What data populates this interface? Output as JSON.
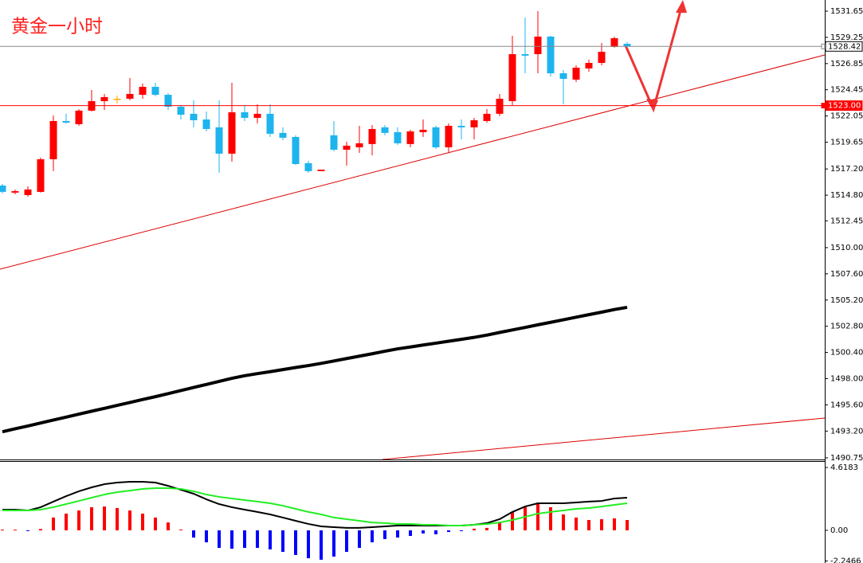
{
  "chart_data": [
    {
      "type": "candlestick",
      "title": "黄金一小时",
      "open": [
        1515.68,
        1515.03,
        1514.81,
        1515.1,
        1518.09,
        1521.59,
        1521.3,
        1522.54,
        1523.41,
        1523.63,
        1523.63,
        1523.99,
        1524.72,
        1523.99,
        1522.9,
        1522.25,
        1521.73,
        1521.01,
        1518.6,
        1522.39,
        1521.88,
        1522.25,
        1520.5,
        1520.13,
        1517.73,
        1517.0,
        1520.28,
        1518.96,
        1519.18,
        1519.48,
        1521.01,
        1520.57,
        1519.48,
        1520.57,
        1521.01,
        1519.18,
        1521.15,
        1521.01,
        1521.59,
        1522.25,
        1523.41,
        1527.71,
        1527.71,
        1529.32,
        1525.96,
        1525.38,
        1526.4,
        1526.91,
        1528.37,
        1528.66
      ],
      "high": [
        1515.83,
        1515.32,
        1515.61,
        1518.24,
        1522.1,
        1522.25,
        1522.68,
        1524.43,
        1524.07,
        1523.92,
        1525.53,
        1525.02,
        1525.09,
        1524.14,
        1523.05,
        1523.48,
        1522.46,
        1523.48,
        1525.09,
        1523.05,
        1523.12,
        1523.12,
        1521.01,
        1520.28,
        1517.94,
        1517.14,
        1521.59,
        1519.69,
        1521.15,
        1521.22,
        1521.22,
        1521.01,
        1520.79,
        1521.73,
        1521.15,
        1521.37,
        1521.73,
        1521.88,
        1522.68,
        1524.07,
        1529.39,
        1531.07,
        1531.65,
        1529.39,
        1526.25,
        1526.69,
        1527.2,
        1528.73,
        1529.32,
        1528.81
      ],
      "low": [
        1514.96,
        1514.88,
        1514.66,
        1515.03,
        1517.0,
        1521.37,
        1521.15,
        1522.46,
        1522.61,
        1523.19,
        1523.48,
        1523.63,
        1523.85,
        1522.61,
        1521.73,
        1521.01,
        1520.64,
        1516.85,
        1517.87,
        1521.59,
        1521.37,
        1520.13,
        1519.84,
        1517.58,
        1516.85,
        1517.0,
        1518.82,
        1517.51,
        1518.67,
        1518.45,
        1520.28,
        1519.4,
        1519.18,
        1520.13,
        1519.04,
        1518.67,
        1519.91,
        1519.91,
        1521.44,
        1522.03,
        1523.05,
        1525.96,
        1525.96,
        1525.67,
        1523.12,
        1525.16,
        1526.11,
        1526.69,
        1528.3,
        1528.3
      ],
      "close": [
        1515.1,
        1515.17,
        1515.32,
        1518.09,
        1521.59,
        1521.44,
        1522.54,
        1523.41,
        1523.78,
        1523.63,
        1524.07,
        1524.72,
        1523.99,
        1522.9,
        1522.17,
        1521.66,
        1520.86,
        1518.6,
        1522.39,
        1521.88,
        1522.25,
        1520.42,
        1520.06,
        1517.65,
        1517.0,
        1517.14,
        1518.96,
        1519.33,
        1519.55,
        1520.86,
        1520.5,
        1519.55,
        1520.64,
        1520.79,
        1519.18,
        1521.15,
        1521.01,
        1521.66,
        1522.25,
        1523.63,
        1527.71,
        1527.57,
        1529.32,
        1525.96,
        1525.45,
        1526.47,
        1526.91,
        1527.93,
        1529.17,
        1528.44
      ],
      "colors": {
        "up": "#ff0000",
        "down": "#1eb4ee",
        "doji": "#ffa500"
      },
      "lines": [
        {
          "color": "#000000",
          "values": [
            1493.14,
            1493.41,
            1493.67,
            1493.94,
            1494.21,
            1494.48,
            1494.75,
            1495.02,
            1495.28,
            1495.55,
            1495.82,
            1496.09,
            1496.35,
            1496.63,
            1496.91,
            1497.19,
            1497.47,
            1497.75,
            1498.03,
            1498.27,
            1498.46,
            1498.64,
            1498.83,
            1499.02,
            1499.2,
            1499.4,
            1499.62,
            1499.84,
            1500.06,
            1500.28,
            1500.51,
            1500.73,
            1500.9,
            1501.08,
            1501.25,
            1501.43,
            1501.6,
            1501.78,
            1501.99,
            1502.23,
            1502.46,
            1502.69,
            1502.93,
            1503.16,
            1503.39,
            1503.63,
            1503.86,
            1504.09,
            1504.33,
            1504.53
          ]
        }
      ],
      "price_labels": [
        {
          "value": 1528.42,
          "label": "1528.42",
          "color": "#888888",
          "fill": "#ffffff",
          "text_color": "#000000"
        },
        {
          "value": 1523,
          "label": "1523.00",
          "color": "#ff0000",
          "fill": "#ff0000",
          "text_color": "#ffffff"
        }
      ],
      "ylim": [
        1490.6,
        1532.67
      ],
      "yticks": [
        1531.65,
        1529.25,
        1526.85,
        1524.45,
        1522.05,
        1519.65,
        {
          "value": 1517.2,
          "label": "1517.20"
        },
        {
          "value": 1514.8,
          "label": "1514.80"
        },
        1512.45,
        {
          "value": 1510,
          "label": "1510.00"
        },
        {
          "value": 1507.6,
          "label": "1507.60"
        },
        {
          "value": 1505.2,
          "label": "1505.20"
        },
        {
          "value": 1502.8,
          "label": "1502.80"
        },
        {
          "value": 1500.4,
          "label": "1500.40"
        },
        {
          "value": 1498,
          "label": "1498.00"
        },
        {
          "value": 1495.6,
          "label": "1495.60"
        },
        {
          "value": 1493.2,
          "label": "1493.20"
        },
        1490.75
      ]
    },
    {
      "type": "macd",
      "values": [
        0.05,
        0.05,
        -0.05,
        0.1,
        0.94,
        1.23,
        1.46,
        1.7,
        1.75,
        1.64,
        1.46,
        1.23,
        0.94,
        0.58,
        0.06,
        -0.53,
        -0.88,
        -1.29,
        -1.35,
        -1.29,
        -1.29,
        -1.4,
        -1.58,
        -1.81,
        -2.05,
        -2.16,
        -1.93,
        -1.58,
        -1.29,
        -0.88,
        -0.64,
        -0.53,
        -0.41,
        -0.23,
        -0.29,
        -0.12,
        -0.03,
        0.12,
        0.18,
        0.58,
        1.35,
        1.7,
        1.99,
        1.7,
        1.17,
        0.94,
        0.76,
        0.82,
        0.88,
        0.76
      ],
      "colors": {
        "up": "#ff0000",
        "down": "#0000ff"
      },
      "lines": [
        {
          "color": "#000000",
          "values": [
            1.52,
            1.52,
            1.46,
            1.7,
            2.11,
            2.51,
            2.87,
            3.16,
            3.39,
            3.51,
            3.57,
            3.57,
            3.51,
            3.27,
            2.98,
            2.69,
            2.28,
            1.93,
            1.7,
            1.52,
            1.35,
            1.17,
            0.94,
            0.7,
            0.47,
            0.29,
            0.23,
            0.18,
            0.18,
            0.23,
            0.29,
            0.35,
            0.35,
            0.35,
            0.35,
            0.35,
            0.35,
            0.41,
            0.53,
            0.82,
            1.35,
            1.75,
            1.99,
            1.99,
            1.99,
            2.05,
            2.11,
            2.16,
            2.34,
            2.4
          ]
        },
        {
          "color": "#22ee22",
          "values": [
            1.46,
            1.46,
            1.46,
            1.52,
            1.7,
            1.93,
            2.16,
            2.4,
            2.63,
            2.81,
            2.92,
            3.04,
            3.1,
            3.1,
            3.04,
            2.87,
            2.63,
            2.46,
            2.34,
            2.22,
            2.11,
            1.99,
            1.81,
            1.58,
            1.35,
            1.17,
            0.94,
            0.82,
            0.7,
            0.58,
            0.53,
            0.47,
            0.47,
            0.41,
            0.41,
            0.35,
            0.35,
            0.41,
            0.47,
            0.58,
            0.76,
            0.99,
            1.23,
            1.35,
            1.46,
            1.58,
            1.64,
            1.75,
            1.87,
            1.99
          ]
        }
      ],
      "ylim": [
        -2.4,
        5.09
      ],
      "yticks": [
        4.6183,
        {
          "value": 0,
          "label": "0.00"
        },
        -2.2466
      ]
    }
  ]
}
